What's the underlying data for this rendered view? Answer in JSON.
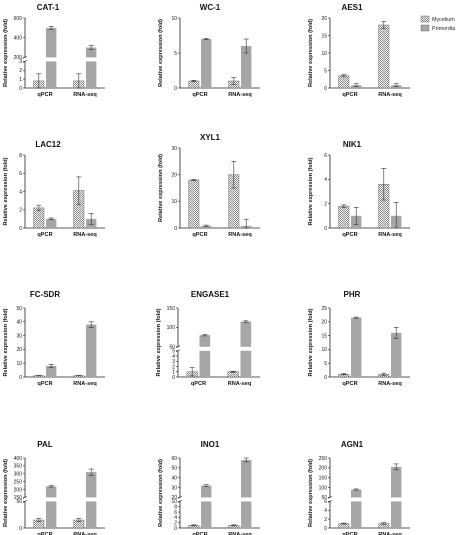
{
  "legend": {
    "position": "top-right",
    "items": [
      {
        "name": "Mycelium",
        "pattern": "checker"
      },
      {
        "name": "Primordia",
        "pattern": "gray"
      }
    ]
  },
  "chart_data": [
    {
      "type": "bar",
      "title": "CAT-1",
      "ylabel": "Relative expression (fold)",
      "categories": [
        "qPCR",
        "RNA-seq"
      ],
      "series": [
        {
          "name": "Mycelium",
          "values": [
            0.8,
            0.8
          ],
          "errors": [
            0.8,
            0.8
          ]
        },
        {
          "name": "Primordia",
          "values": [
            500,
            300
          ],
          "errors": [
            15,
            20
          ]
        }
      ],
      "break": {
        "lower": [
          0,
          3
        ],
        "upper": [
          200,
          600
        ]
      },
      "yticks": [
        0,
        1,
        2,
        3,
        200,
        400,
        600
      ]
    },
    {
      "type": "bar",
      "title": "WC-1",
      "ylabel": "Relative expression (fold)",
      "categories": [
        "qPCR",
        "RNA-seq"
      ],
      "series": [
        {
          "name": "Mycelium",
          "values": [
            1,
            1
          ],
          "errors": [
            0.1,
            0.5
          ]
        },
        {
          "name": "Primordia",
          "values": [
            7,
            6
          ],
          "errors": [
            0.1,
            1
          ]
        }
      ],
      "ylim": [
        0,
        10
      ],
      "yticks": [
        0,
        5,
        10
      ]
    },
    {
      "type": "bar",
      "title": "AES1",
      "ylabel": "Relative expression (fold)",
      "categories": [
        "qPCR",
        "RNA-seq"
      ],
      "series": [
        {
          "name": "Mycelium",
          "values": [
            3.5,
            18
          ],
          "errors": [
            0.3,
            1
          ]
        },
        {
          "name": "Primordia",
          "values": [
            0.8,
            0.8
          ],
          "errors": [
            0.4,
            0.4
          ]
        }
      ],
      "ylim": [
        0,
        20
      ],
      "yticks": [
        0,
        5,
        10,
        15,
        20
      ]
    },
    {
      "type": "bar",
      "title": "LAC12",
      "ylabel": "Relative expression (fold)",
      "categories": [
        "qPCR",
        "RNA-seq"
      ],
      "series": [
        {
          "name": "Mycelium",
          "values": [
            2.2,
            4.1
          ],
          "errors": [
            0.3,
            1.5
          ]
        },
        {
          "name": "Primordia",
          "values": [
            1,
            1
          ],
          "errors": [
            0.1,
            0.6
          ]
        }
      ],
      "ylim": [
        0,
        8
      ],
      "yticks": [
        0,
        2,
        4,
        6,
        8
      ]
    },
    {
      "type": "bar",
      "title": "XYL1",
      "ylabel": "Relative expression (fold)",
      "categories": [
        "qPCR",
        "RNA-seq"
      ],
      "series": [
        {
          "name": "Mycelium",
          "values": [
            18,
            20
          ],
          "errors": [
            0.2,
            5
          ]
        },
        {
          "name": "Primordia",
          "values": [
            0.8,
            0.8
          ],
          "errors": [
            0.3,
            2.5
          ]
        }
      ],
      "ylim": [
        0,
        30
      ],
      "yticks": [
        0,
        10,
        20,
        30
      ]
    },
    {
      "type": "bar",
      "title": "NIK1",
      "ylabel": "Relative expression (fold)",
      "categories": [
        "qPCR",
        "RNA-seq"
      ],
      "series": [
        {
          "name": "Mycelium",
          "values": [
            1.8,
            3.6
          ],
          "errors": [
            0.1,
            1.3
          ]
        },
        {
          "name": "Primordia",
          "values": [
            1,
            1
          ],
          "errors": [
            0.7,
            1.1
          ]
        }
      ],
      "ylim": [
        0,
        6
      ],
      "yticks": [
        0,
        2,
        4,
        6
      ]
    },
    {
      "type": "bar",
      "title": "FC-SDR",
      "ylabel": "Relative expression (fold)",
      "categories": [
        "qPCR",
        "RNA-seq"
      ],
      "series": [
        {
          "name": "Mycelium",
          "values": [
            1,
            1
          ],
          "errors": [
            0.1,
            0.1
          ]
        },
        {
          "name": "Primordia",
          "values": [
            8,
            38
          ],
          "errors": [
            1.2,
            2
          ]
        }
      ],
      "ylim": [
        0,
        50
      ],
      "yticks": [
        0,
        10,
        20,
        30,
        40,
        50
      ]
    },
    {
      "type": "bar",
      "title": "ENGASE1",
      "ylabel": "Relative expression (fold)",
      "categories": [
        "qPCR",
        "RNA-seq"
      ],
      "series": [
        {
          "name": "Mycelium",
          "values": [
            1,
            1
          ],
          "errors": [
            0.8,
            0.1
          ]
        },
        {
          "name": "Primordia",
          "values": [
            80,
            115
          ],
          "errors": [
            2,
            2
          ]
        }
      ],
      "break": {
        "lower": [
          0,
          5
        ],
        "upper": [
          50,
          150
        ]
      },
      "yticks": [
        0,
        1,
        2,
        3,
        4,
        5,
        50,
        100,
        150
      ]
    },
    {
      "type": "bar",
      "title": "PHR",
      "ylabel": "Relative expression (fold)",
      "categories": [
        "qPCR",
        "RNA-seq"
      ],
      "series": [
        {
          "name": "Mycelium",
          "values": [
            1,
            1
          ],
          "errors": [
            0.2,
            0.4
          ]
        },
        {
          "name": "Primordia",
          "values": [
            21.5,
            16
          ],
          "errors": [
            0.2,
            2
          ]
        }
      ],
      "ylim": [
        0,
        25
      ],
      "yticks": [
        0,
        5,
        10,
        15,
        20,
        25
      ]
    },
    {
      "type": "bar",
      "title": "PAL",
      "ylabel": "Relative expression (fold)",
      "categories": [
        "qPCR",
        "RNA-seq"
      ],
      "series": [
        {
          "name": "Mycelium",
          "values": [
            15,
            15
          ],
          "errors": [
            3,
            3
          ]
        },
        {
          "name": "Primordia",
          "values": [
            220,
            310
          ],
          "errors": [
            5,
            20
          ]
        }
      ],
      "break": {
        "lower": [
          0,
          50
        ],
        "upper": [
          150,
          400
        ]
      },
      "yticks": [
        0,
        50,
        150,
        200,
        250,
        300,
        350,
        400
      ]
    },
    {
      "type": "bar",
      "title": "INO1",
      "ylabel": "Relative expression (fold)",
      "categories": [
        "qPCR",
        "RNA-seq"
      ],
      "series": [
        {
          "name": "Mycelium",
          "values": [
            1,
            1
          ],
          "errors": [
            0.2,
            0.2
          ]
        },
        {
          "name": "Primordia",
          "values": [
            32,
            58
          ],
          "errors": [
            1,
            2
          ]
        }
      ],
      "break": {
        "lower": [
          0,
          10
        ],
        "upper": [
          20,
          60
        ]
      },
      "yticks": [
        0,
        2,
        4,
        6,
        8,
        10,
        20,
        30,
        40,
        50,
        60
      ]
    },
    {
      "type": "bar",
      "title": "AGN1",
      "ylabel": "Relative expression (fold)",
      "categories": [
        "qPCR",
        "RNA-seq"
      ],
      "series": [
        {
          "name": "Mycelium",
          "values": [
            1,
            1
          ],
          "errors": [
            0.1,
            0.2
          ]
        },
        {
          "name": "Primordia",
          "values": [
            90,
            205
          ],
          "errors": [
            3,
            15
          ]
        }
      ],
      "break": {
        "lower": [
          0,
          6
        ],
        "upper": [
          50,
          250
        ]
      },
      "yticks": [
        0,
        2,
        4,
        6,
        50,
        100,
        150,
        200,
        250
      ]
    }
  ]
}
